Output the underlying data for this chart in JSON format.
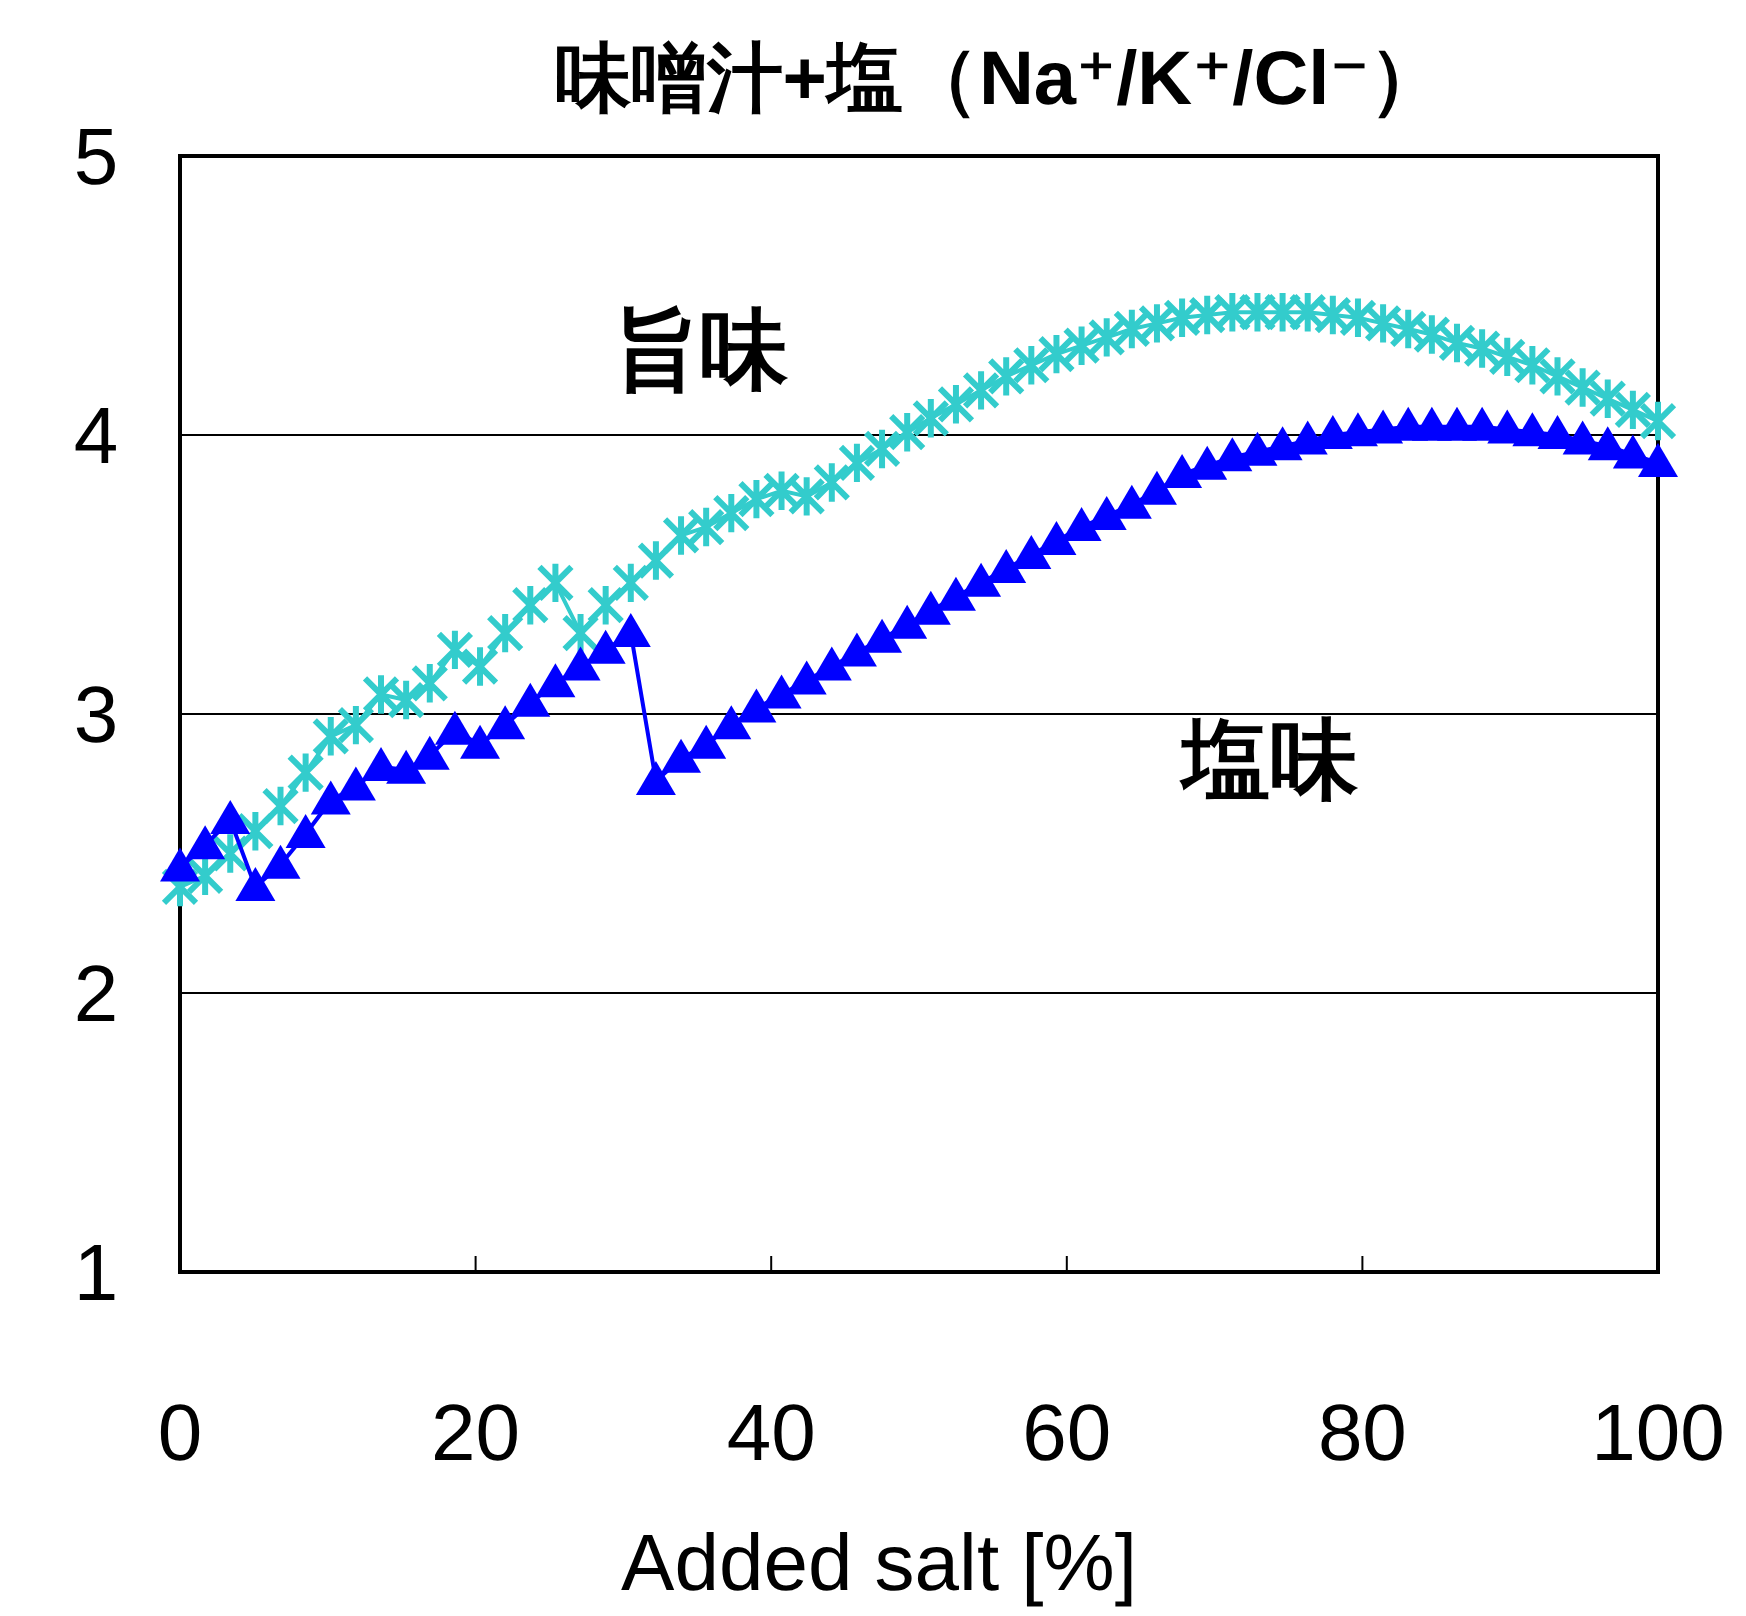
{
  "chart_data": {
    "type": "line",
    "title": "味噌汁+塩（Na⁺/K⁺/Cl⁻）",
    "xlabel": "Added salt [%]",
    "xlim": [
      0,
      100
    ],
    "xticks": [
      0,
      20,
      40,
      60,
      80,
      100
    ],
    "ylim": [
      1,
      5
    ],
    "yticks": [
      1,
      2,
      3,
      4,
      5
    ],
    "grid": "y",
    "line_style": "solid",
    "x": [
      0,
      1.7,
      3.4,
      5.1,
      6.8,
      8.5,
      10.2,
      11.9,
      13.6,
      15.3,
      16.9,
      18.6,
      20.3,
      22.0,
      23.7,
      25.4,
      27.1,
      28.8,
      30.5,
      32.2,
      33.9,
      35.6,
      37.3,
      39.0,
      40.7,
      42.4,
      44.1,
      45.8,
      47.5,
      49.2,
      50.8,
      52.5,
      54.2,
      55.9,
      57.6,
      59.3,
      61.0,
      62.7,
      64.4,
      66.1,
      67.8,
      69.5,
      71.2,
      72.9,
      74.6,
      76.3,
      78.0,
      79.7,
      81.4,
      83.1,
      84.7,
      86.4,
      88.1,
      89.8,
      91.5,
      93.2,
      94.9,
      96.6,
      98.3,
      100
    ],
    "series": [
      {
        "color": "#33cccc",
        "marker": "cross",
        "values": [
          2.38,
          2.42,
          2.5,
          2.58,
          2.67,
          2.79,
          2.92,
          2.96,
          3.07,
          3.05,
          3.11,
          3.23,
          3.17,
          3.29,
          3.39,
          3.47,
          3.29,
          3.39,
          3.47,
          3.55,
          3.64,
          3.67,
          3.72,
          3.77,
          3.8,
          3.78,
          3.83,
          3.9,
          3.95,
          4.01,
          4.06,
          4.11,
          4.16,
          4.21,
          4.25,
          4.29,
          4.32,
          4.35,
          4.38,
          4.4,
          4.42,
          4.43,
          4.44,
          4.44,
          4.44,
          4.44,
          4.43,
          4.42,
          4.4,
          4.38,
          4.36,
          4.33,
          4.31,
          4.28,
          4.25,
          4.21,
          4.17,
          4.13,
          4.09,
          4.05
        ]
      },
      {
        "color": "#0000ff",
        "marker": "triangle",
        "values": [
          2.45,
          2.53,
          2.62,
          2.38,
          2.46,
          2.57,
          2.69,
          2.74,
          2.81,
          2.8,
          2.85,
          2.94,
          2.89,
          2.96,
          3.04,
          3.11,
          3.17,
          3.23,
          3.29,
          2.76,
          2.84,
          2.89,
          2.96,
          3.02,
          3.07,
          3.12,
          3.17,
          3.22,
          3.27,
          3.32,
          3.37,
          3.42,
          3.47,
          3.52,
          3.57,
          3.62,
          3.67,
          3.71,
          3.75,
          3.8,
          3.86,
          3.89,
          3.92,
          3.94,
          3.96,
          3.98,
          4.0,
          4.01,
          4.02,
          4.03,
          4.03,
          4.03,
          4.03,
          4.02,
          4.01,
          4.0,
          3.98,
          3.96,
          3.93,
          3.9
        ]
      }
    ],
    "annotations": [
      "旨味",
      "塩味"
    ]
  }
}
